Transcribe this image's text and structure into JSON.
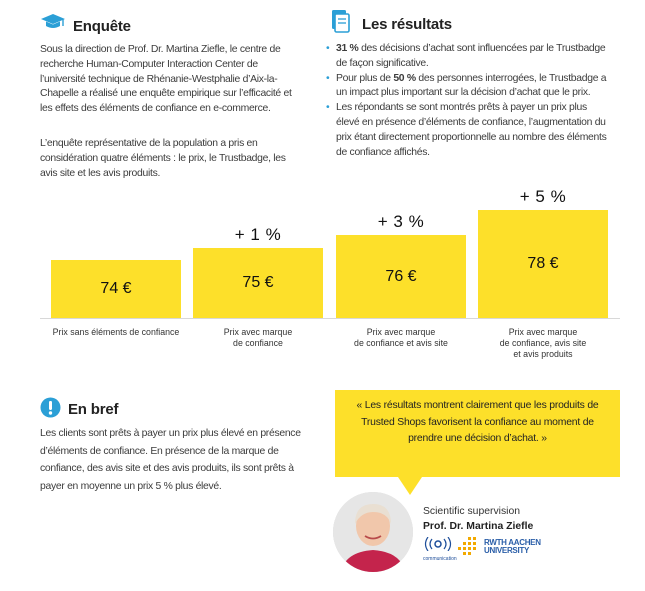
{
  "enquete": {
    "title": "Enquête",
    "para1": "Sous la direction de Prof. Dr. Martina Ziefle, le centre de recherche Human-Computer Interaction Center de l’université technique de Rhénanie-Westphalie d’Aix-la-Chapelle a réalisé une enquête empirique sur l’efficacité et les effets des éléments de confiance en e-commerce.",
    "para2": "L’enquête représentative de la population a pris en considération quatre éléments : le prix, le Trustbadge, les avis site et les avis produits."
  },
  "resultats": {
    "title": "Les résultats",
    "items": [
      {
        "bold": "31 %",
        "text": " des décisions d’achat sont influencées par le Trustbadge de façon significative."
      },
      {
        "pre": "Pour plus de ",
        "bold": "50 %",
        "text": " des personnes interrogées, le Trustbadge a un impact plus important sur la décision d’achat que le prix."
      },
      {
        "text": "Les répondants se sont montrés prêts à payer un prix plus élevé en présence d’éléments de confiance, l’augmentation du prix étant directement proportionnelle au nombre des éléments de confiance affichés."
      }
    ]
  },
  "chart_data": {
    "type": "bar",
    "categories": [
      "Prix sans éléments de confiance",
      "Prix avec marque de confiance",
      "Prix avec marque de confiance et avis site",
      "Prix avec marque de confiance, avis site et avis produits"
    ],
    "values": [
      74,
      75,
      76,
      78
    ],
    "value_labels": [
      "74 €",
      "75 €",
      "76 €",
      "78 €"
    ],
    "increase_labels": [
      "",
      "+ 1 %",
      "+ 3 %",
      "+ 5 %"
    ],
    "label_lines": [
      [
        "Prix sans éléments de confiance"
      ],
      [
        "Prix avec marque",
        "de confiance"
      ],
      [
        "Prix avec marque",
        "de confiance et avis site"
      ],
      [
        "Prix avec marque",
        "de confiance, avis site",
        "et avis produits"
      ]
    ],
    "bar_color": "#fde02a"
  },
  "enbref": {
    "title": "En bref",
    "para": "Les clients sont prêts à payer un prix plus élevé en présence d’éléments de confiance. En présence de la marque de confiance, des avis site et des avis produits, ils sont prêts à payer en moyenne un prix 5 % plus élevé."
  },
  "quote": {
    "text": "« Les résultats montrent clairement que les produits de Trusted Shops favorisent la confiance au moment de prendre une décision d’achat. »"
  },
  "supervision": {
    "label": "Scientific supervision",
    "name": "Prof. Dr. Martina Ziefle",
    "logo1": "communication",
    "logo2": "RWTH AACHEN UNIVERSITY"
  },
  "colors": {
    "accent_blue": "#2b9fd6",
    "yellow": "#fde02a"
  },
  "icons": {
    "enquete": "graduation-cap-icon",
    "resultats": "document-icon",
    "enbref": "exclamation-icon"
  }
}
